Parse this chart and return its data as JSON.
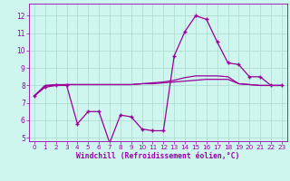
{
  "xlabel": "Windchill (Refroidissement éolien,°C)",
  "bg_color": "#cff5ef",
  "grid_color": "#b0ddd0",
  "line_color": "#990099",
  "spine_color": "#9900aa",
  "xlim": [
    -0.5,
    23.5
  ],
  "ylim": [
    4.8,
    12.7
  ],
  "yticks": [
    5,
    6,
    7,
    8,
    9,
    10,
    11,
    12
  ],
  "xticks": [
    0,
    1,
    2,
    3,
    4,
    5,
    6,
    7,
    8,
    9,
    10,
    11,
    12,
    13,
    14,
    15,
    16,
    17,
    18,
    19,
    20,
    21,
    22,
    23
  ],
  "hours": [
    0,
    1,
    2,
    3,
    4,
    5,
    6,
    7,
    8,
    9,
    10,
    11,
    12,
    13,
    14,
    15,
    16,
    17,
    18,
    19,
    20,
    21,
    22,
    23
  ],
  "line1": [
    7.4,
    7.9,
    8.0,
    8.0,
    5.8,
    6.5,
    6.5,
    4.7,
    6.3,
    6.2,
    5.5,
    5.4,
    5.4,
    9.7,
    11.1,
    12.0,
    11.8,
    10.5,
    9.3,
    9.2,
    8.5,
    8.5,
    8.0,
    8.0
  ],
  "line2": [
    7.4,
    8.0,
    8.0,
    8.05,
    8.05,
    8.05,
    8.05,
    8.05,
    8.05,
    8.05,
    8.1,
    8.1,
    8.15,
    8.2,
    8.25,
    8.3,
    8.35,
    8.35,
    8.35,
    8.1,
    8.05,
    8.0,
    8.0,
    8.0
  ],
  "line3": [
    7.4,
    8.0,
    8.05,
    8.05,
    8.05,
    8.05,
    8.05,
    8.05,
    8.05,
    8.05,
    8.1,
    8.15,
    8.2,
    8.3,
    8.45,
    8.55,
    8.55,
    8.55,
    8.5,
    8.1,
    8.05,
    8.0,
    8.0,
    8.0
  ]
}
